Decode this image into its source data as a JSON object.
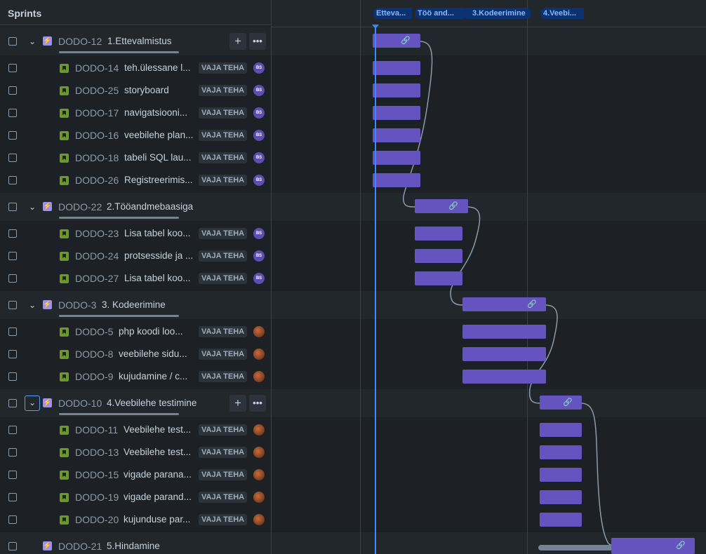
{
  "header": {
    "title": "Sprints"
  },
  "sprints": [
    "Etteva...",
    "Töö and...",
    "3.Kodeerimine",
    "4.Veebi..."
  ],
  "status_label": "VAJA TEHA",
  "icons": {
    "expand": "chevron-down-icon",
    "epic": "epic-lightning-icon",
    "story": "story-bookmark-icon",
    "link": "link-icon",
    "add": "plus-icon",
    "more": "more-icon"
  },
  "colors": {
    "bar": "#6554c0",
    "today": "#388bff",
    "epic_icon": "#9f8fef",
    "story_icon": "#6a9a23"
  },
  "rows": [
    {
      "type": "epic",
      "key": "DODO-12",
      "summary": "1.Ettevalmistus"
    },
    {
      "type": "story",
      "key": "DODO-14",
      "summary": "teh.ülessane l...",
      "status": "VAJA TEHA",
      "assignee": "BS"
    },
    {
      "type": "story",
      "key": "DODO-25",
      "summary": "storyboard",
      "status": "VAJA TEHA",
      "assignee": "BS"
    },
    {
      "type": "story",
      "key": "DODO-17",
      "summary": "navigatsiooni...",
      "status": "VAJA TEHA",
      "assignee": "BS"
    },
    {
      "type": "story",
      "key": "DODO-16",
      "summary": "veebilehe plan...",
      "status": "VAJA TEHA",
      "assignee": "BS"
    },
    {
      "type": "story",
      "key": "DODO-18",
      "summary": "tabeli SQL lau...",
      "status": "VAJA TEHA",
      "assignee": "BS"
    },
    {
      "type": "story",
      "key": "DODO-26",
      "summary": "Registreerimis...",
      "status": "VAJA TEHA",
      "assignee": "BS"
    },
    {
      "type": "epic",
      "key": "DODO-22",
      "summary": "2.Tööandmebaasiga"
    },
    {
      "type": "story",
      "key": "DODO-23",
      "summary": "Lisa tabel koo...",
      "status": "VAJA TEHA",
      "assignee": "BS"
    },
    {
      "type": "story",
      "key": "DODO-24",
      "summary": "protsesside ja ...",
      "status": "VAJA TEHA",
      "assignee": "BS"
    },
    {
      "type": "story",
      "key": "DODO-27",
      "summary": "Lisa tabel koo...",
      "status": "VAJA TEHA",
      "assignee": "BS"
    },
    {
      "type": "epic",
      "key": "DODO-3",
      "summary": "3. Kodeerimine"
    },
    {
      "type": "story",
      "key": "DODO-5",
      "summary": "php koodi loo...",
      "status": "VAJA TEHA",
      "assignee": ""
    },
    {
      "type": "story",
      "key": "DODO-8",
      "summary": "veebilehe sidu...",
      "status": "VAJA TEHA",
      "assignee": ""
    },
    {
      "type": "story",
      "key": "DODO-9",
      "summary": "kujudamine / c...",
      "status": "VAJA TEHA",
      "assignee": ""
    },
    {
      "type": "epic",
      "key": "DODO-10",
      "summary": "4.Veebilehe testimine"
    },
    {
      "type": "story",
      "key": "DODO-11",
      "summary": "Veebilehe test...",
      "status": "VAJA TEHA",
      "assignee": ""
    },
    {
      "type": "story",
      "key": "DODO-13",
      "summary": "Veebilehe test...",
      "status": "VAJA TEHA",
      "assignee": ""
    },
    {
      "type": "story",
      "key": "DODO-15",
      "summary": "vigade parana...",
      "status": "VAJA TEHA",
      "assignee": ""
    },
    {
      "type": "story",
      "key": "DODO-19",
      "summary": "vigade parand...",
      "status": "VAJA TEHA",
      "assignee": ""
    },
    {
      "type": "story",
      "key": "DODO-20",
      "summary": "kujunduse par...",
      "status": "VAJA TEHA",
      "assignee": ""
    },
    {
      "type": "epic",
      "key": "DODO-21",
      "summary": "5.Hindamine"
    }
  ]
}
